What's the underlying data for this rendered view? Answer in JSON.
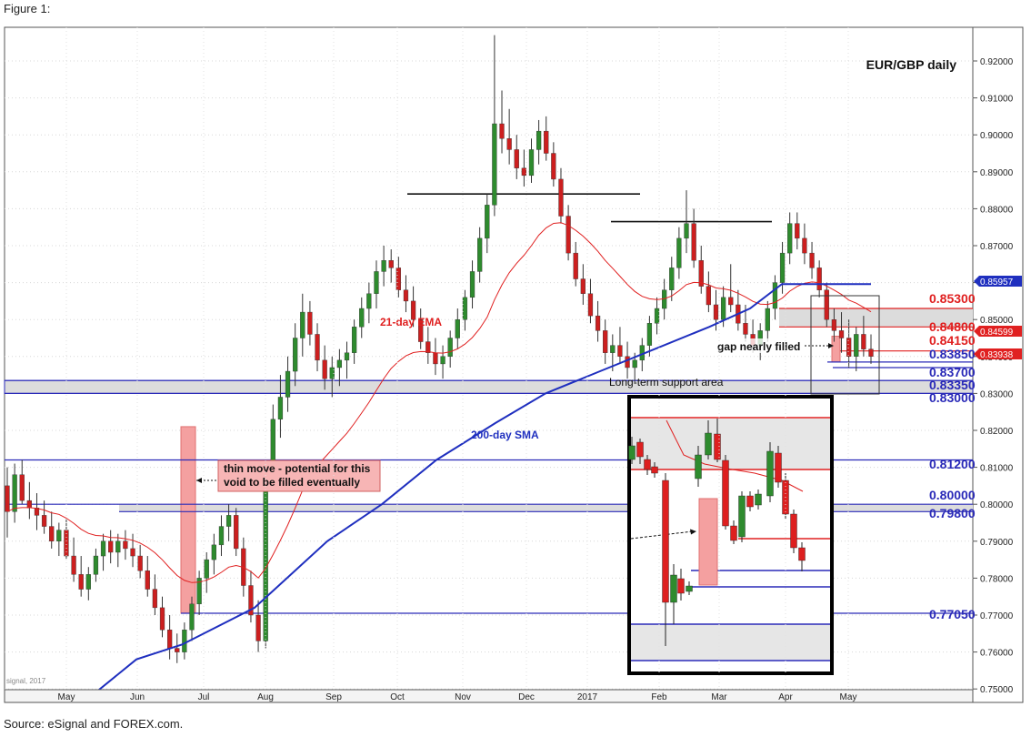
{
  "figure_label": "Figure 1:",
  "source": "Source: eSignal and FOREX.com.",
  "chart_data": {
    "type": "candlestick",
    "title": "EUR/GBP daily",
    "watermark": "signal, 2017",
    "y_ticks": [
      "0.92000",
      "0.91000",
      "0.90000",
      "0.89000",
      "0.88000",
      "0.87000",
      "0.86000",
      "0.85000",
      "0.84000",
      "0.83000",
      "0.82000",
      "0.81000",
      "0.80000",
      "0.79000",
      "0.78000",
      "0.77000",
      "0.76000",
      "0.75000"
    ],
    "x_ticks": [
      "May",
      "Jun",
      "Jul",
      "Aug",
      "Sep",
      "Oct",
      "Nov",
      "Dec",
      "2017",
      "Feb",
      "Mar",
      "Apr",
      "May"
    ],
    "price_badges": [
      {
        "label": "0.85957",
        "value": 0.85957,
        "color": "#1f2fbf"
      },
      {
        "label": "0.84599",
        "value": 0.84599,
        "color": "#e02020"
      },
      {
        "label": "0.83938",
        "value": 0.83938,
        "color": "#e02020"
      }
    ],
    "levels": [
      {
        "label": "0.85300",
        "value": 0.853,
        "color": "#e02020"
      },
      {
        "label": "0.84800",
        "value": 0.848,
        "color": "#e02020"
      },
      {
        "label": "0.84150",
        "value": 0.8415,
        "color": "#e02020"
      },
      {
        "label": "0.83850",
        "value": 0.8385,
        "color": "#2a2ab8"
      },
      {
        "label": "0.83700",
        "value": 0.837,
        "color": "#2a2ab8"
      },
      {
        "label": "0.83350",
        "value": 0.8335,
        "color": "#2a2ab8"
      },
      {
        "label": "0.83000",
        "value": 0.83,
        "color": "#2a2ab8"
      },
      {
        "label": "0.81200",
        "value": 0.812,
        "color": "#2a2ab8"
      },
      {
        "label": "0.80000",
        "value": 0.8,
        "color": "#2a2ab8"
      },
      {
        "label": "0.79800",
        "value": 0.798,
        "color": "#2a2ab8"
      },
      {
        "label": "0.77050",
        "value": 0.7705,
        "color": "#2a2ab8"
      }
    ],
    "annotations": {
      "ema": "21-day EMA",
      "sma": "200-day SMA",
      "support": "Long-term support area",
      "gap": "gap nearly filled",
      "thin_move": [
        "thin move - potential for this",
        "void to be filled eventually"
      ]
    },
    "series": [
      {
        "name": "21-day EMA",
        "color": "#e02020"
      },
      {
        "name": "200-day SMA",
        "color": "#1f2fbf"
      }
    ],
    "candles": [
      [
        0.805,
        0.81,
        0.791,
        0.798
      ],
      [
        0.798,
        0.811,
        0.795,
        0.808
      ],
      [
        0.808,
        0.812,
        0.8,
        0.801
      ],
      [
        0.801,
        0.806,
        0.796,
        0.799
      ],
      [
        0.799,
        0.803,
        0.793,
        0.797
      ],
      [
        0.797,
        0.801,
        0.792,
        0.794
      ],
      [
        0.794,
        0.798,
        0.788,
        0.79
      ],
      [
        0.79,
        0.795,
        0.786,
        0.793
      ],
      [
        0.793,
        0.796,
        0.785,
        0.786
      ],
      [
        0.786,
        0.791,
        0.779,
        0.781
      ],
      [
        0.781,
        0.786,
        0.775,
        0.777
      ],
      [
        0.777,
        0.783,
        0.774,
        0.781
      ],
      [
        0.781,
        0.788,
        0.779,
        0.786
      ],
      [
        0.786,
        0.792,
        0.782,
        0.79
      ],
      [
        0.79,
        0.793,
        0.784,
        0.787
      ],
      [
        0.787,
        0.792,
        0.783,
        0.79
      ],
      [
        0.79,
        0.793,
        0.785,
        0.788
      ],
      [
        0.788,
        0.792,
        0.783,
        0.786
      ],
      [
        0.786,
        0.789,
        0.78,
        0.782
      ],
      [
        0.782,
        0.786,
        0.775,
        0.777
      ],
      [
        0.777,
        0.781,
        0.77,
        0.772
      ],
      [
        0.772,
        0.775,
        0.764,
        0.766
      ],
      [
        0.766,
        0.77,
        0.758,
        0.761
      ],
      [
        0.761,
        0.765,
        0.757,
        0.76
      ],
      [
        0.76,
        0.768,
        0.758,
        0.766
      ],
      [
        0.766,
        0.775,
        0.763,
        0.773
      ],
      [
        0.773,
        0.782,
        0.77,
        0.78
      ],
      [
        0.78,
        0.787,
        0.776,
        0.785
      ],
      [
        0.785,
        0.792,
        0.781,
        0.789
      ],
      [
        0.789,
        0.797,
        0.786,
        0.794
      ],
      [
        0.794,
        0.8,
        0.79,
        0.797
      ],
      [
        0.797,
        0.799,
        0.786,
        0.788
      ],
      [
        0.788,
        0.791,
        0.775,
        0.778
      ],
      [
        0.778,
        0.782,
        0.768,
        0.77
      ],
      [
        0.77,
        0.774,
        0.76,
        0.763
      ],
      [
        0.763,
        0.812,
        0.761,
        0.809
      ],
      [
        0.809,
        0.827,
        0.806,
        0.823
      ],
      [
        0.823,
        0.835,
        0.818,
        0.829
      ],
      [
        0.829,
        0.84,
        0.825,
        0.836
      ],
      [
        0.836,
        0.849,
        0.832,
        0.845
      ],
      [
        0.845,
        0.857,
        0.84,
        0.852
      ],
      [
        0.852,
        0.855,
        0.843,
        0.846
      ],
      [
        0.846,
        0.849,
        0.836,
        0.839
      ],
      [
        0.839,
        0.843,
        0.831,
        0.834
      ],
      [
        0.834,
        0.84,
        0.829,
        0.837
      ],
      [
        0.837,
        0.842,
        0.832,
        0.839
      ],
      [
        0.839,
        0.844,
        0.834,
        0.841
      ],
      [
        0.841,
        0.85,
        0.838,
        0.848
      ],
      [
        0.848,
        0.856,
        0.845,
        0.853
      ],
      [
        0.853,
        0.86,
        0.849,
        0.857
      ],
      [
        0.857,
        0.866,
        0.853,
        0.863
      ],
      [
        0.863,
        0.87,
        0.859,
        0.866
      ],
      [
        0.866,
        0.869,
        0.86,
        0.864
      ],
      [
        0.864,
        0.867,
        0.856,
        0.858
      ],
      [
        0.858,
        0.862,
        0.852,
        0.855
      ],
      [
        0.855,
        0.859,
        0.848,
        0.85
      ],
      [
        0.85,
        0.853,
        0.842,
        0.844
      ],
      [
        0.844,
        0.848,
        0.838,
        0.841
      ],
      [
        0.841,
        0.845,
        0.835,
        0.838
      ],
      [
        0.838,
        0.843,
        0.834,
        0.84
      ],
      [
        0.84,
        0.847,
        0.837,
        0.845
      ],
      [
        0.845,
        0.853,
        0.842,
        0.85
      ],
      [
        0.85,
        0.858,
        0.847,
        0.856
      ],
      [
        0.856,
        0.866,
        0.853,
        0.863
      ],
      [
        0.863,
        0.875,
        0.86,
        0.872
      ],
      [
        0.872,
        0.884,
        0.868,
        0.881
      ],
      [
        0.881,
        0.927,
        0.878,
        0.903
      ],
      [
        0.903,
        0.912,
        0.895,
        0.899
      ],
      [
        0.899,
        0.907,
        0.892,
        0.896
      ],
      [
        0.896,
        0.9,
        0.888,
        0.891
      ],
      [
        0.891,
        0.896,
        0.886,
        0.889
      ],
      [
        0.889,
        0.899,
        0.887,
        0.896
      ],
      [
        0.896,
        0.904,
        0.892,
        0.901
      ],
      [
        0.901,
        0.905,
        0.893,
        0.895
      ],
      [
        0.895,
        0.898,
        0.886,
        0.888
      ],
      [
        0.888,
        0.891,
        0.876,
        0.878
      ],
      [
        0.878,
        0.881,
        0.866,
        0.868
      ],
      [
        0.868,
        0.871,
        0.859,
        0.861
      ],
      [
        0.861,
        0.865,
        0.854,
        0.857
      ],
      [
        0.857,
        0.861,
        0.849,
        0.851
      ],
      [
        0.851,
        0.855,
        0.844,
        0.847
      ],
      [
        0.847,
        0.85,
        0.838,
        0.841
      ],
      [
        0.841,
        0.846,
        0.836,
        0.843
      ],
      [
        0.843,
        0.848,
        0.838,
        0.84
      ],
      [
        0.84,
        0.844,
        0.834,
        0.837
      ],
      [
        0.837,
        0.841,
        0.833,
        0.839
      ],
      [
        0.839,
        0.845,
        0.836,
        0.843
      ],
      [
        0.843,
        0.851,
        0.84,
        0.849
      ],
      [
        0.849,
        0.856,
        0.846,
        0.853
      ],
      [
        0.853,
        0.861,
        0.85,
        0.858
      ],
      [
        0.858,
        0.867,
        0.855,
        0.864
      ],
      [
        0.864,
        0.875,
        0.861,
        0.872
      ],
      [
        0.872,
        0.885,
        0.868,
        0.876
      ],
      [
        0.876,
        0.88,
        0.864,
        0.866
      ],
      [
        0.866,
        0.87,
        0.857,
        0.859
      ],
      [
        0.859,
        0.863,
        0.852,
        0.854
      ],
      [
        0.854,
        0.858,
        0.847,
        0.85
      ],
      [
        0.85,
        0.859,
        0.848,
        0.856
      ],
      [
        0.856,
        0.865,
        0.852,
        0.854
      ],
      [
        0.854,
        0.858,
        0.847,
        0.849
      ],
      [
        0.849,
        0.854,
        0.844,
        0.846
      ],
      [
        0.846,
        0.85,
        0.841,
        0.843
      ],
      [
        0.843,
        0.849,
        0.839,
        0.847
      ],
      [
        0.847,
        0.855,
        0.844,
        0.853
      ],
      [
        0.853,
        0.862,
        0.85,
        0.86
      ],
      [
        0.86,
        0.871,
        0.857,
        0.868
      ],
      [
        0.868,
        0.879,
        0.865,
        0.876
      ],
      [
        0.876,
        0.879,
        0.869,
        0.872
      ],
      [
        0.872,
        0.876,
        0.865,
        0.868
      ],
      [
        0.868,
        0.871,
        0.861,
        0.864
      ],
      [
        0.864,
        0.866,
        0.856,
        0.858
      ],
      [
        0.858,
        0.86,
        0.848,
        0.85
      ],
      [
        0.85,
        0.853,
        0.844,
        0.847
      ],
      [
        0.847,
        0.852,
        0.841,
        0.845
      ],
      [
        0.845,
        0.85,
        0.837,
        0.84
      ],
      [
        0.84,
        0.848,
        0.836,
        0.846
      ],
      [
        0.846,
        0.851,
        0.84,
        0.842
      ],
      [
        0.842,
        0.846,
        0.838,
        0.84
      ]
    ]
  }
}
